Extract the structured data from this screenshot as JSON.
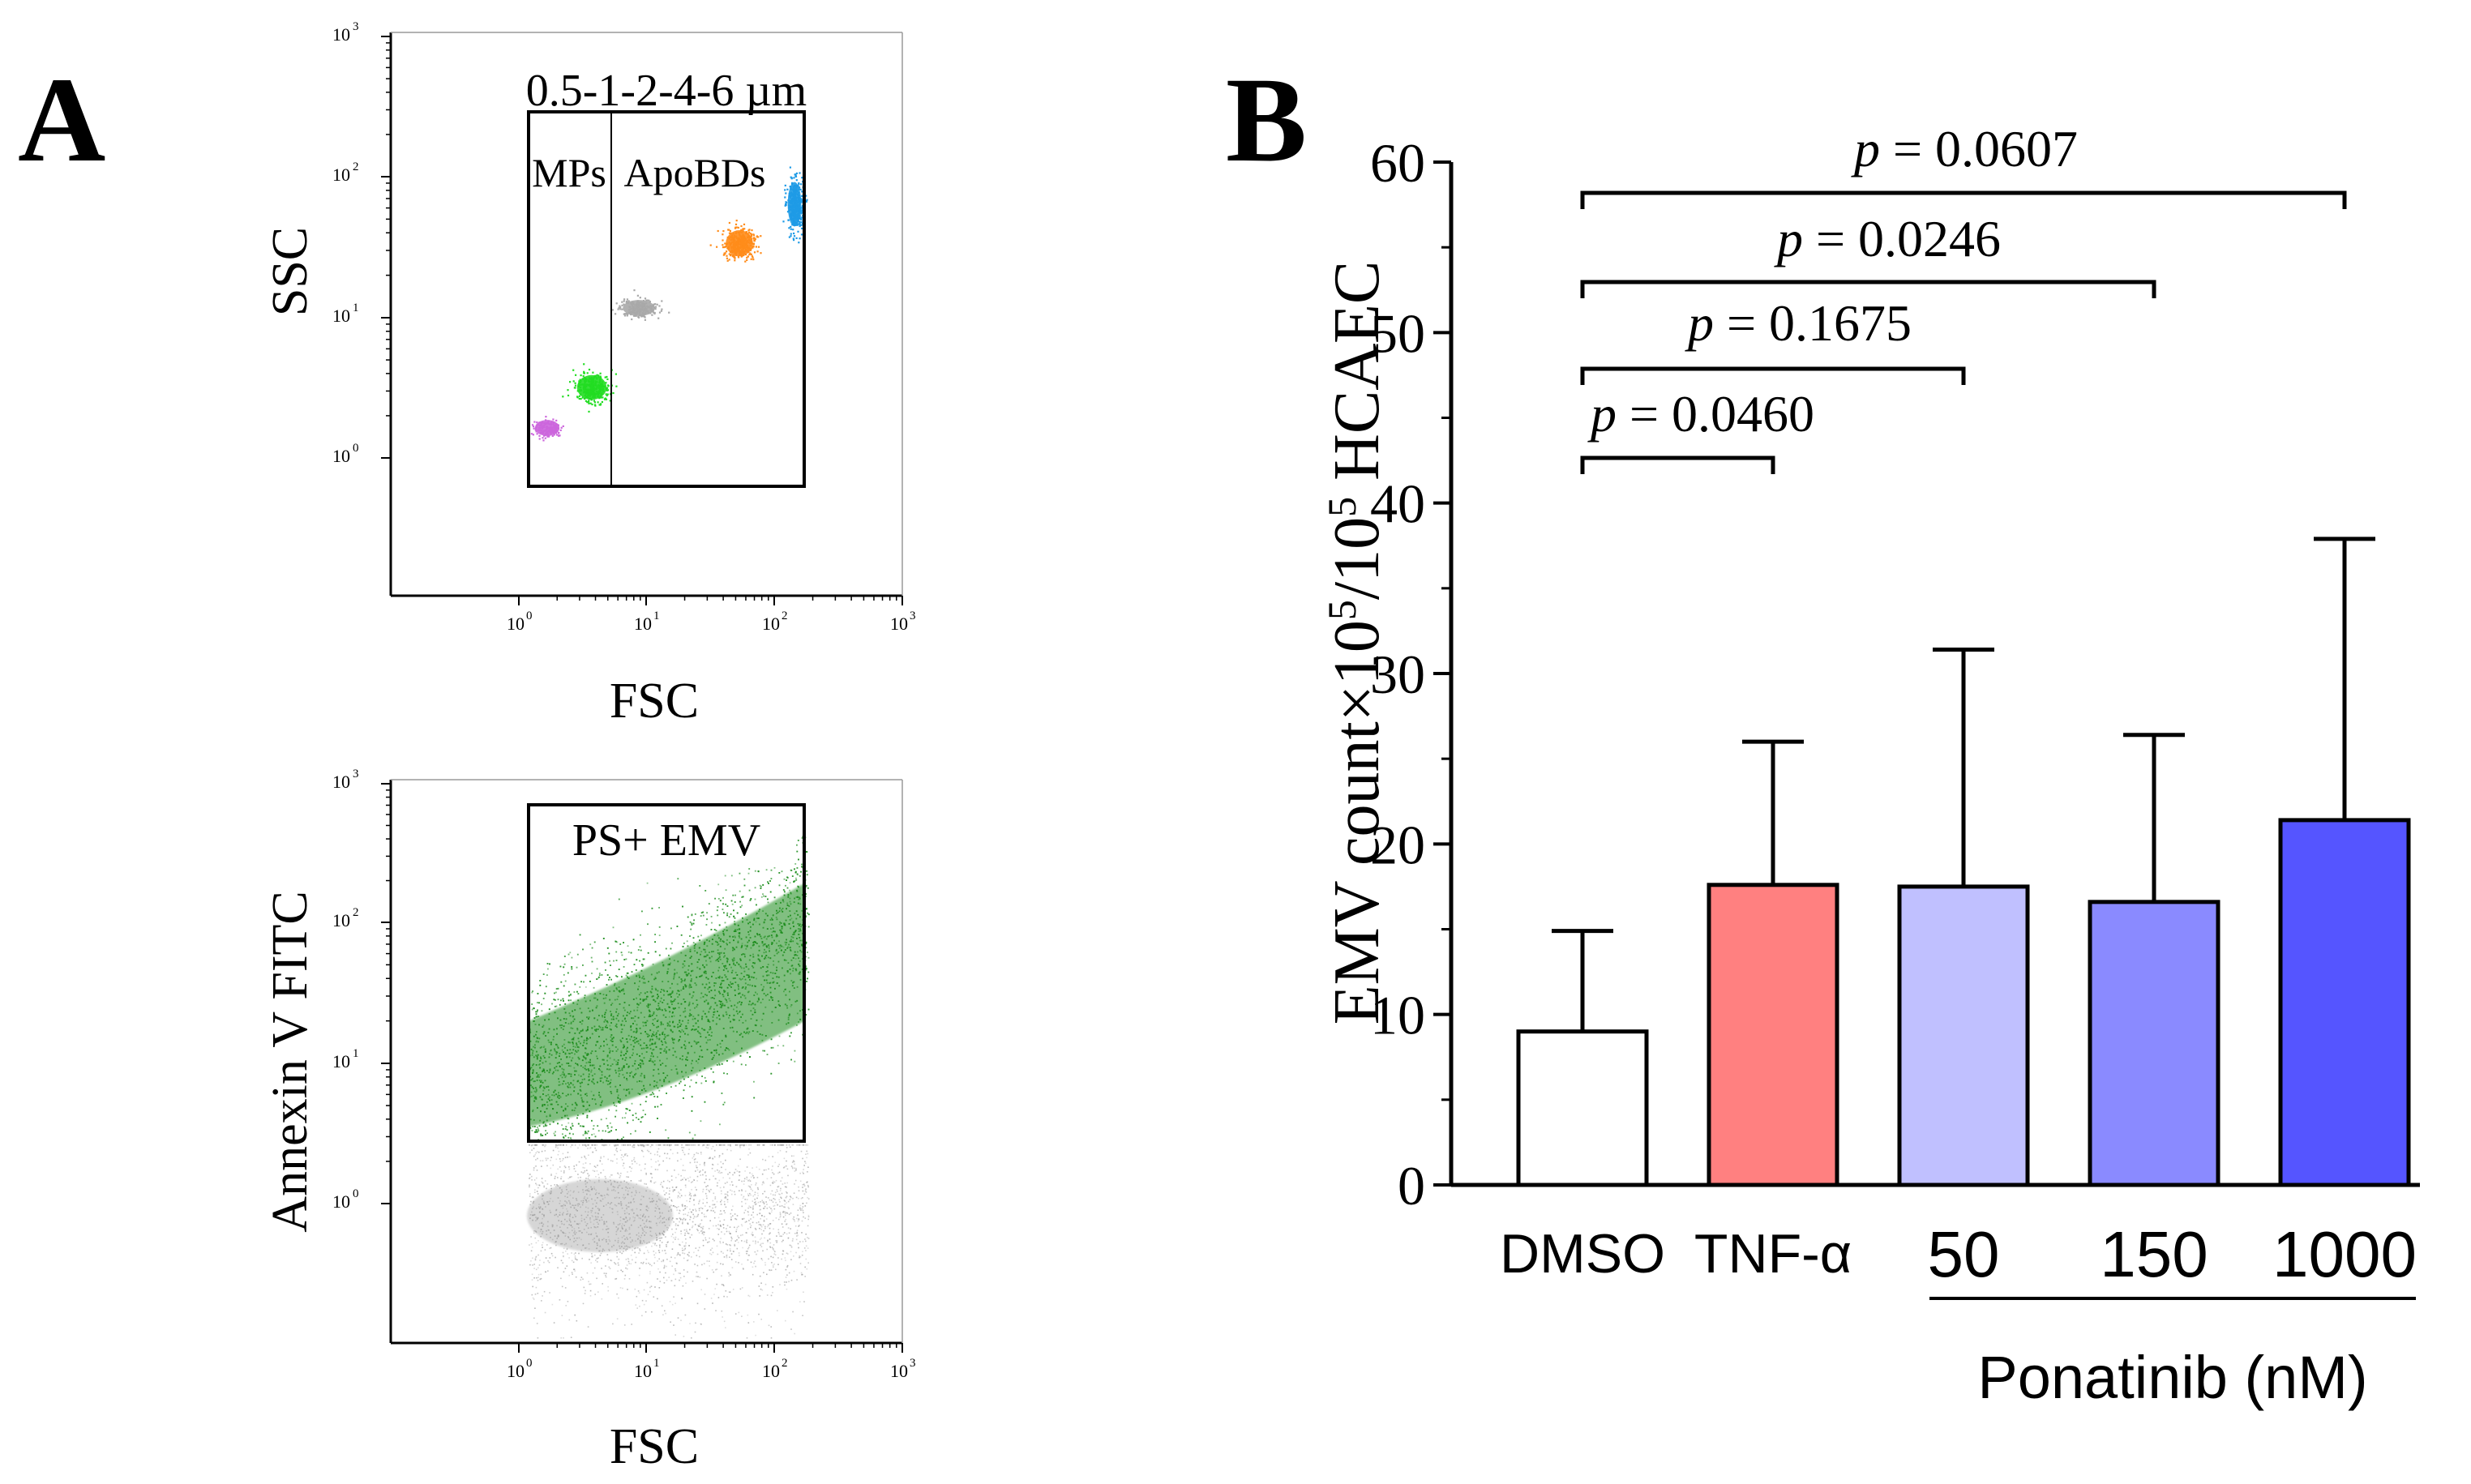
{
  "panel_a": {
    "letter": "A",
    "top_plot": {
      "y_label": "SSC",
      "x_label": "FSC",
      "gate_title": "0.5-1-2-4-6 µm",
      "gate_left_label": "MPs",
      "gate_right_label": "ApoBDs",
      "ticks": [
        {
          "base": "10",
          "exp": "0"
        },
        {
          "base": "10",
          "exp": "1"
        },
        {
          "base": "10",
          "exp": "2"
        },
        {
          "base": "10",
          "exp": "3"
        }
      ],
      "bead_colors": [
        "#cc66dd",
        "#22dd22",
        "#a9a9a9",
        "#ff8c1a",
        "#1e9be6"
      ]
    },
    "bottom_plot": {
      "y_label": "Annexin V FITC",
      "x_label": "FSC",
      "gate_label": "PS+ EMV",
      "ticks": [
        {
          "base": "10",
          "exp": "0"
        },
        {
          "base": "10",
          "exp": "1"
        },
        {
          "base": "10",
          "exp": "2"
        },
        {
          "base": "10",
          "exp": "3"
        }
      ],
      "positive_color": "#1a8c1a",
      "negative_color": "#8c8c8c"
    }
  },
  "panel_b": {
    "letter": "B",
    "y_label": {
      "pre": "EMV count×10",
      "sup1": "5",
      "mid": "/10",
      "sup2": "5",
      "post": " HCAEC"
    },
    "group_label": "Ponatinib (nM)",
    "significance": [
      {
        "p": "p",
        "text": " = 0.0460",
        "from": 0,
        "to": 1
      },
      {
        "p": "p",
        "text": " = 0.1675",
        "from": 0,
        "to": 2
      },
      {
        "p": "p",
        "text": " = 0.0246",
        "from": 0,
        "to": 3
      },
      {
        "p": "p",
        "text": " = 0.0607",
        "from": 0,
        "to": 4
      }
    ]
  },
  "chart_data": {
    "type": "bar",
    "title": "",
    "xlabel": "Ponatinib (nM)",
    "ylabel": "EMV count×10^5/10^5 HCAEC",
    "ylim": [
      0,
      60
    ],
    "yticks": [
      0,
      10,
      20,
      30,
      40,
      50,
      60
    ],
    "ytick_labels": [
      "0",
      "10",
      "20",
      "30",
      "40",
      "50",
      "60"
    ],
    "categories": [
      "DMSO",
      "TNF-α",
      "50",
      "150",
      "1000"
    ],
    "values": [
      9,
      17.6,
      17.5,
      16.6,
      21.4
    ],
    "error_upper": [
      14.9,
      26,
      31.4,
      26.4,
      37.9
    ],
    "colors": [
      "#ffffff",
      "#ff8080",
      "#c0c0ff",
      "#8a8aff",
      "#5555ff"
    ]
  }
}
